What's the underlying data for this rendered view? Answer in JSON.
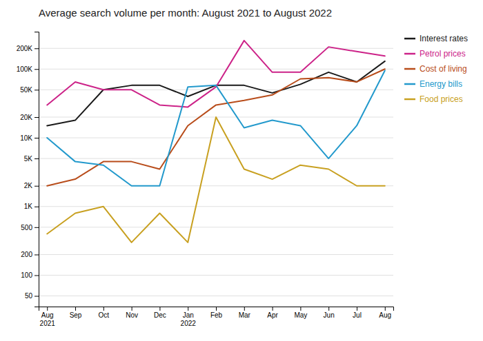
{
  "chart_data": {
    "type": "line",
    "title": "Average search volume per month: August 2021 to August 2022",
    "categories": [
      "Aug\n2021",
      "Sep",
      "Oct",
      "Nov",
      "Dec",
      "Jan\n2022",
      "Feb",
      "Mar",
      "Apr",
      "May",
      "Jun",
      "Jul",
      "Aug"
    ],
    "series": [
      {
        "name": "Interest rates",
        "color": "#1a1a1a",
        "values": [
          15000,
          18000,
          50000,
          58000,
          58000,
          40000,
          58000,
          58000,
          45000,
          60000,
          90000,
          65000,
          130000
        ]
      },
      {
        "name": "Petrol prices",
        "color": "#cc2288",
        "values": [
          30000,
          65000,
          50000,
          50000,
          30000,
          28000,
          55000,
          260000,
          90000,
          90000,
          210000,
          180000,
          155000
        ]
      },
      {
        "name": "Cost of living",
        "color": "#b84c1a",
        "values": [
          2000,
          2500,
          4500,
          4500,
          3500,
          15000,
          30000,
          35000,
          42000,
          72000,
          75000,
          65000,
          100000
        ]
      },
      {
        "name": "Energy bills",
        "color": "#2299cc",
        "values": [
          10000,
          4500,
          4000,
          2000,
          2000,
          55000,
          58000,
          14000,
          18000,
          15000,
          5000,
          15000,
          95000
        ]
      },
      {
        "name": "Food prices",
        "color": "#c8a020",
        "values": [
          400,
          800,
          1000,
          300,
          800,
          300,
          20000,
          3500,
          2500,
          4000,
          3500,
          2000,
          2000
        ]
      }
    ],
    "log": "y",
    "ylim": [
      35,
      350000
    ],
    "yticks": [
      50,
      100,
      200,
      500,
      {
        "value": 1000,
        "label": "1K"
      },
      {
        "value": 2000,
        "label": "2K"
      },
      {
        "value": 5000,
        "label": "5K"
      },
      {
        "value": 10000,
        "label": "10K"
      },
      {
        "value": 20000,
        "label": "20K"
      },
      {
        "value": 50000,
        "label": "50K"
      },
      {
        "value": 100000,
        "label": "100K"
      },
      {
        "value": 200000,
        "label": "200K"
      }
    ],
    "grid": true,
    "legend": "right"
  }
}
